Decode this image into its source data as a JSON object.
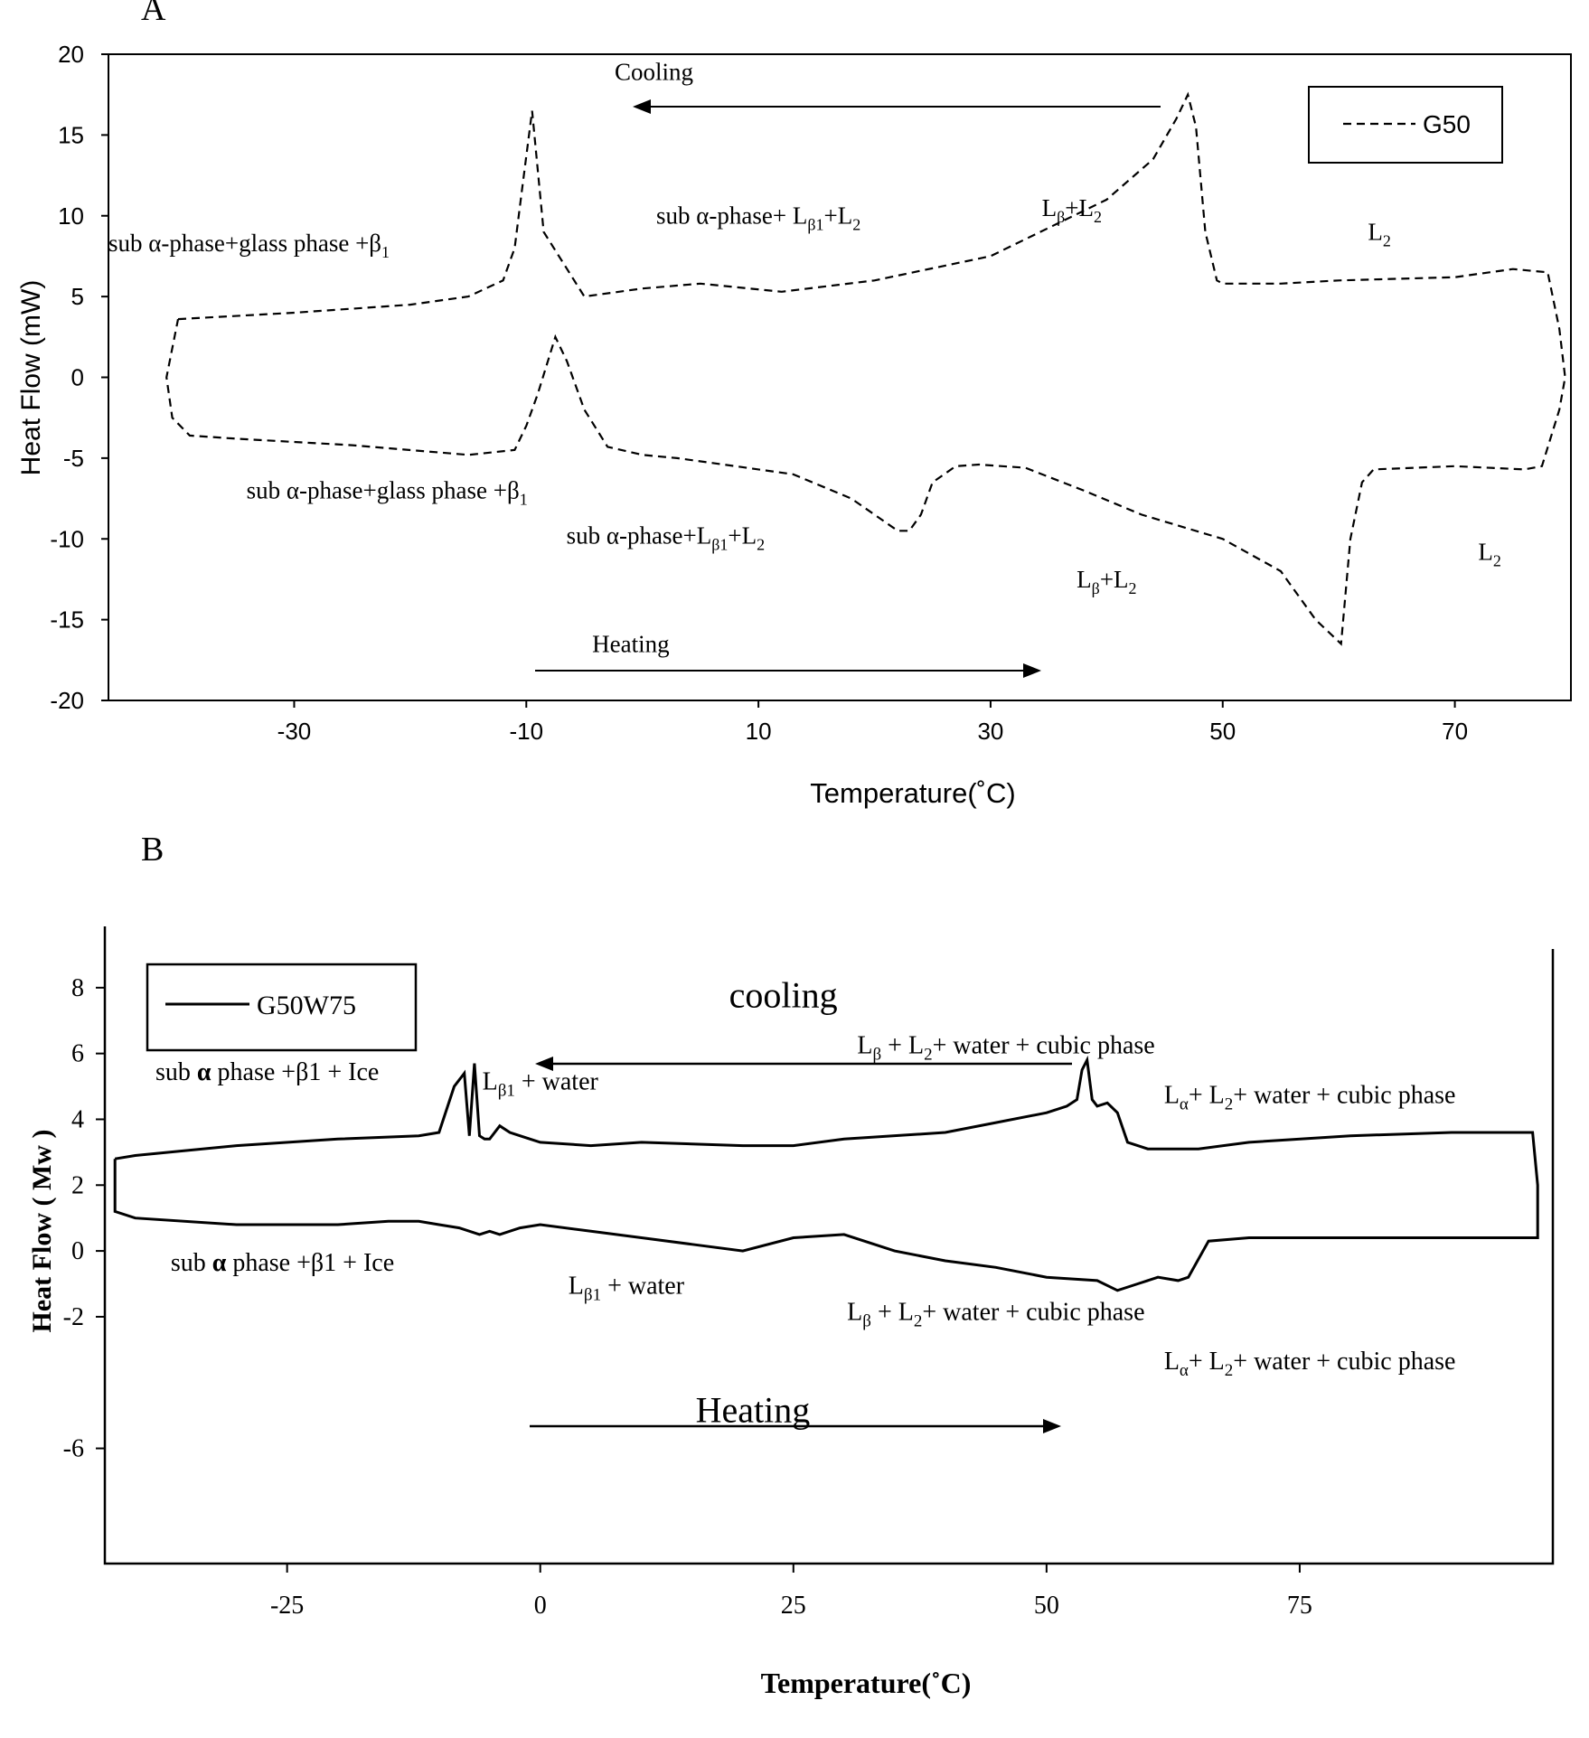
{
  "chart_data": [
    {
      "panel_label": "A",
      "type": "line",
      "xlabel": "Temperature(˚C)",
      "ylabel": "Heat Flow (mW)",
      "xlim": [
        -46,
        80
      ],
      "ylim": [
        -20,
        20
      ],
      "x_ticks": [
        "-30",
        "-10",
        "10",
        "30",
        "50",
        "70"
      ],
      "y_ticks": [
        "20",
        "15",
        "10",
        "5",
        "0",
        "-5",
        "-10",
        "-15",
        "-20"
      ],
      "legend": {
        "position": "top-right",
        "label": "G50"
      },
      "series": [
        {
          "name": "G50",
          "style": "dashed",
          "x": [
            -40,
            -30,
            -20,
            -15,
            -12,
            -11,
            -10.3,
            -9.5,
            -8.5,
            -5,
            0,
            5,
            12,
            20,
            30,
            40,
            44,
            46,
            47,
            47.7,
            48.5,
            49.5,
            50,
            55,
            60,
            70,
            75,
            78,
            79,
            79.5,
            79,
            77.5,
            76,
            70,
            63,
            62,
            61,
            60.2,
            58,
            55,
            50,
            43,
            38,
            33,
            29,
            27,
            25,
            24,
            23,
            22,
            20,
            18,
            13,
            8,
            3,
            0,
            -3,
            -5,
            -6.5,
            -7.5,
            -9,
            -10,
            -11,
            -15,
            -25,
            -35,
            -39,
            -40.5,
            -41,
            -40
          ],
          "y": [
            3.6,
            4,
            4.5,
            5,
            6,
            8,
            12,
            16.5,
            9,
            5,
            5.5,
            5.8,
            5.3,
            6,
            7.5,
            11,
            13.5,
            16,
            17.5,
            15.5,
            9,
            6,
            5.8,
            5.8,
            6,
            6.2,
            6.7,
            6.5,
            3,
            0,
            -2,
            -5.5,
            -5.7,
            -5.5,
            -5.7,
            -6.5,
            -10,
            -16.5,
            -15,
            -12,
            -10,
            -8.5,
            -7,
            -5.6,
            -5.4,
            -5.5,
            -6.5,
            -8.5,
            -9.5,
            -9.5,
            -8.5,
            -7.5,
            -6,
            -5.5,
            -5,
            -4.8,
            -4.3,
            -2,
            1,
            2.5,
            -1,
            -3,
            -4.5,
            -4.8,
            -4.2,
            -3.8,
            -3.6,
            -2.5,
            0,
            3.6
          ]
        }
      ],
      "annotations": [
        {
          "id": "a-cooling",
          "text": "Cooling",
          "x": 1,
          "y": 18.4
        },
        {
          "id": "a-heating",
          "text": "Heating",
          "x": -1,
          "y": -17
        },
        {
          "id": "a-c1",
          "text": "sub α-phase+glass phase +β",
          "sub": "1",
          "x": -46,
          "y": 7.8,
          "anchor": "start"
        },
        {
          "id": "a-c2",
          "text": "sub α-phase+ L",
          "sub": "β1",
          "text2": "+L",
          "sub2": "2",
          "x": 10,
          "y": 9.5
        },
        {
          "id": "a-c3",
          "text": "L",
          "sub": "β",
          "text2": "+L",
          "sub2": "2",
          "x": 37,
          "y": 10
        },
        {
          "id": "a-c4",
          "text": "L",
          "sub": "2",
          "x": 63.5,
          "y": 8.5
        },
        {
          "id": "a-h1",
          "text": "sub α-phase+glass phase +β",
          "sub": "1",
          "x": -22,
          "y": -7.5
        },
        {
          "id": "a-h2",
          "text": "sub α-phase+L",
          "sub": "β1",
          "text2": "+L",
          "sub2": "2",
          "x": 2,
          "y": -10.3
        },
        {
          "id": "a-h3",
          "text": "L",
          "sub": "β",
          "text2": "+L",
          "sub2": "2",
          "x": 40,
          "y": -13
        },
        {
          "id": "a-h4",
          "text": "L",
          "sub": "2",
          "x": 73,
          "y": -11.3
        }
      ]
    },
    {
      "panel_label": "B",
      "type": "line",
      "xlabel": "Temperature(˚C)",
      "ylabel": "Heat Flow ( Mw )",
      "xlim": [
        -43,
        100
      ],
      "ylim": [
        -9.5,
        10
      ],
      "x_ticks": [
        "-25",
        "0",
        "25",
        "50",
        "75"
      ],
      "y_ticks": [
        "8",
        "6",
        "4",
        "2",
        "0",
        "-2",
        "-6"
      ],
      "legend": {
        "position": "top-left",
        "label": "G50W75"
      },
      "series": [
        {
          "name": "G50W75",
          "style": "solid",
          "x": [
            -42,
            -40,
            -30,
            -20,
            -12,
            -10,
            -8.5,
            -7.5,
            -7,
            -6.5,
            -6,
            -5.5,
            -5,
            -4,
            -3,
            -2,
            -1,
            0,
            5,
            10,
            20,
            25,
            30,
            40,
            45,
            50,
            52,
            53,
            53.5,
            54,
            54.5,
            55,
            56,
            57,
            58,
            60,
            65,
            70,
            80,
            90,
            98,
            98.5,
            98.5,
            97,
            90,
            80,
            70,
            66,
            64,
            63,
            61,
            59,
            57,
            55,
            50,
            45,
            40,
            35,
            30,
            25,
            20,
            15,
            10,
            5,
            0,
            -2,
            -4,
            -5,
            -6,
            -8,
            -10,
            -12,
            -15,
            -20,
            -30,
            -40,
            -42,
            -42,
            -42
          ],
          "y": [
            2.8,
            2.9,
            3.2,
            3.4,
            3.5,
            3.6,
            5,
            5.4,
            3.5,
            5.7,
            3.5,
            3.4,
            3.4,
            3.8,
            3.6,
            3.5,
            3.4,
            3.3,
            3.2,
            3.3,
            3.2,
            3.2,
            3.4,
            3.6,
            3.9,
            4.2,
            4.4,
            4.6,
            5.5,
            5.8,
            4.6,
            4.4,
            4.5,
            4.2,
            3.3,
            3.1,
            3.1,
            3.3,
            3.5,
            3.6,
            3.6,
            2,
            0.4,
            0.4,
            0.4,
            0.4,
            0.4,
            0.3,
            -0.8,
            -0.9,
            -0.8,
            -1,
            -1.2,
            -0.9,
            -0.8,
            -0.5,
            -0.3,
            0,
            0.5,
            0.4,
            0,
            0.2,
            0.4,
            0.6,
            0.8,
            0.7,
            0.5,
            0.6,
            0.5,
            0.7,
            0.8,
            0.9,
            0.9,
            0.8,
            0.8,
            1,
            1.2,
            2,
            2.8
          ]
        }
      ],
      "annotations": [
        {
          "id": "b-cooling",
          "text": "cooling",
          "x": 24,
          "y": 7.4,
          "size": "large"
        },
        {
          "id": "b-heating",
          "text": "Heating",
          "x": 21,
          "y": -5.2,
          "size": "large"
        },
        {
          "id": "b-c1",
          "text": "sub ",
          "bold": "α",
          "text2": " phase +β1 + Ice",
          "x": -38,
          "y": 5.2,
          "anchor": "start"
        },
        {
          "id": "b-c2",
          "text": "L",
          "sub": "β1",
          "text2": " + water",
          "x": 0,
          "y": 4.9
        },
        {
          "id": "b-c3",
          "text": "L",
          "sub": "β",
          "text2": " + L",
          "sub2": "2",
          "text3": "+ water  + cubic phase",
          "x": 46,
          "y": 6
        },
        {
          "id": "b-c4",
          "text": "L",
          "sub": "α",
          "text2": "+ L",
          "sub2": "2",
          "text3": "+ water  + cubic phase",
          "x": 76,
          "y": 4.5
        },
        {
          "id": "b-h1",
          "text": "sub ",
          "bold": "α",
          "text2": " phase +β1 + Ice",
          "x": -36.5,
          "y": -0.6,
          "anchor": "start"
        },
        {
          "id": "b-h2",
          "text": "L",
          "sub": "β1",
          "text2": " + water",
          "x": 8.5,
          "y": -1.3
        },
        {
          "id": "b-h3",
          "text": "L",
          "sub": "β",
          "text2": " + L",
          "sub2": "2",
          "text3": "+ water  + cubic phase",
          "x": 45,
          "y": -2.1
        },
        {
          "id": "b-h4",
          "text": "L",
          "sub": "α",
          "text2": "+ L",
          "sub2": "2",
          "text3": "+ water  + cubic phase",
          "x": 76,
          "y": -3.6
        }
      ]
    }
  ]
}
